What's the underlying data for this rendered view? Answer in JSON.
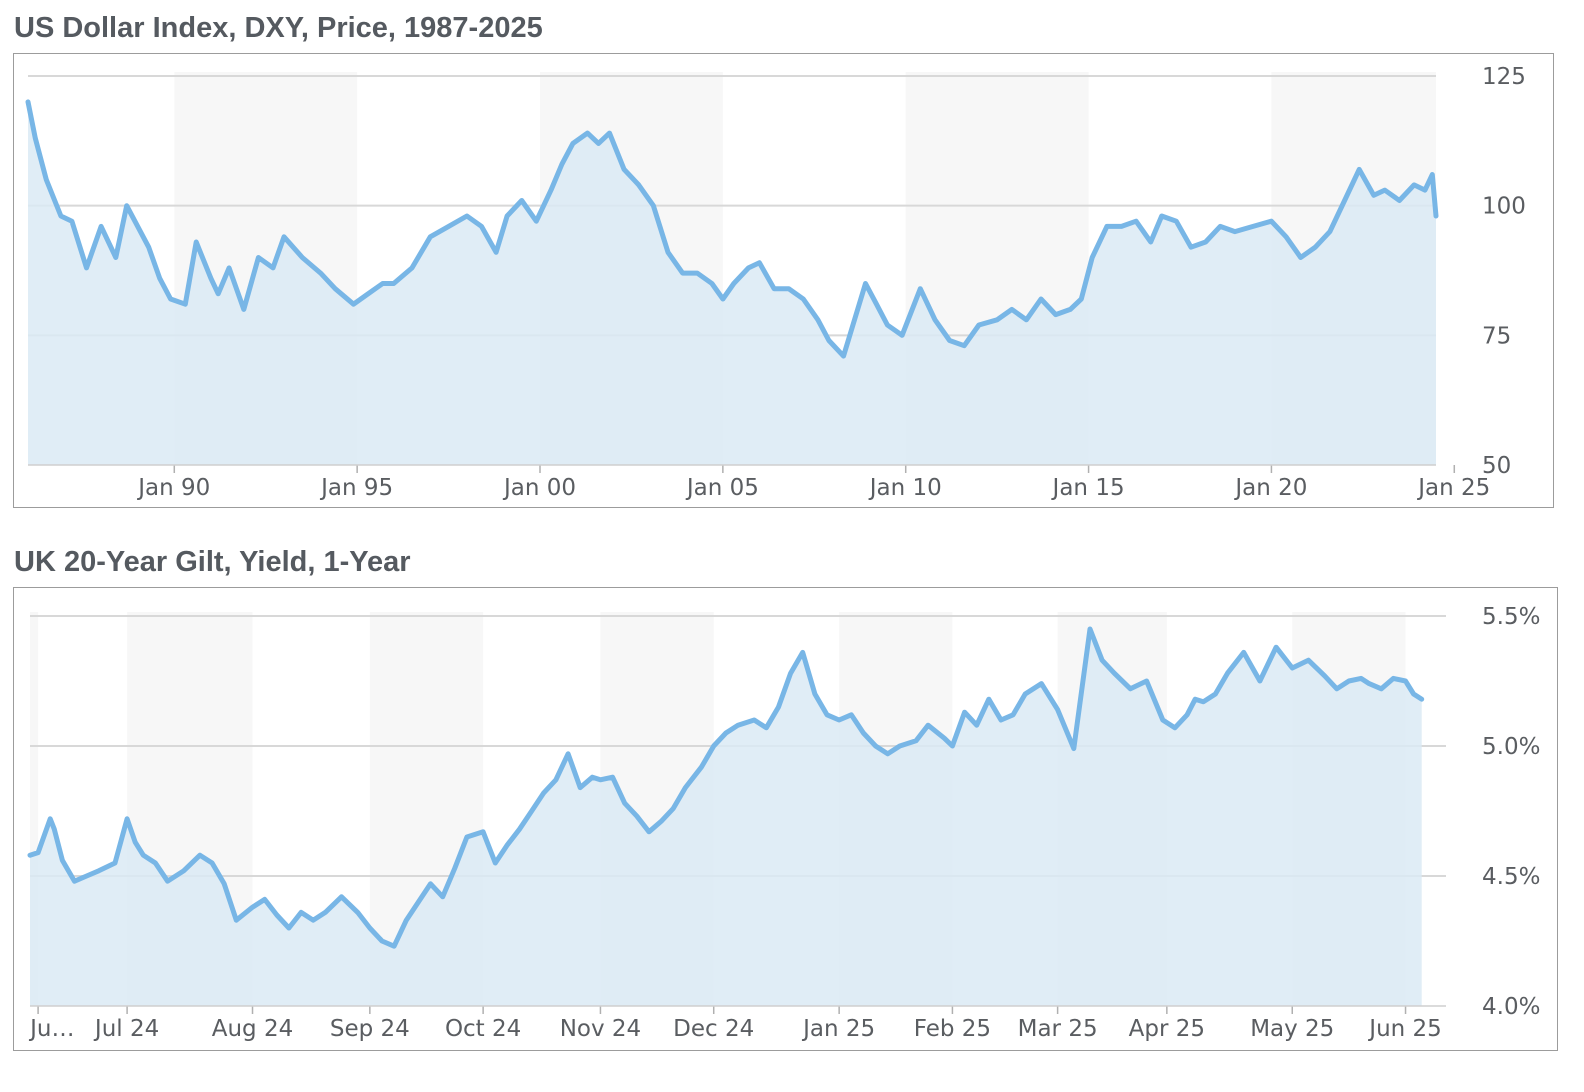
{
  "charts": [
    {
      "title": "US Dollar Index, DXY, Price, 1987-2025",
      "accent_color": "#78b6e6",
      "fill_color": "#dbeaf4",
      "band_color": "#f7f7f7"
    },
    {
      "title": "UK 20-Year Gilt, Yield, 1-Year",
      "accent_color": "#78b6e6",
      "fill_color": "#dbeaf4",
      "band_color": "#f7f7f7"
    }
  ],
  "chart_data": [
    {
      "type": "area",
      "title": "US Dollar Index, DXY, Price, 1987-2025",
      "xlabel": "",
      "ylabel": "",
      "x_range": [
        1986.0,
        2024.5
      ],
      "ylim": [
        50,
        125
      ],
      "y_ticks": [
        50,
        75,
        100,
        125
      ],
      "y_tick_labels": [
        "50",
        "75",
        "100",
        "125"
      ],
      "x_ticks": [
        1990,
        1995,
        2000,
        2005,
        2010,
        2015,
        2020,
        2025
      ],
      "x_tick_labels": [
        "Jan 90",
        "Jan 95",
        "Jan 00",
        "Jan 05",
        "Jan 10",
        "Jan 15",
        "Jan 20",
        "Jan 25"
      ],
      "grid": "horizontal",
      "legend": "none",
      "series": [
        {
          "x": [
            1986.0,
            1986.2,
            1986.5,
            1986.9,
            1987.2,
            1987.6,
            1988.0,
            1988.4,
            1988.7,
            1989.0,
            1989.3,
            1989.6,
            1989.9,
            1990.3,
            1990.6,
            1991.0,
            1991.2,
            1991.5,
            1991.9,
            1992.3,
            1992.7,
            1993.0,
            1993.5,
            1994.0,
            1994.4,
            1994.9,
            1995.3,
            1995.7,
            1996.0,
            1996.5,
            1997.0,
            1997.5,
            1998.0,
            1998.4,
            1998.8,
            1999.1,
            1999.5,
            1999.9,
            2000.3,
            2000.6,
            2000.9,
            2001.3,
            2001.6,
            2001.9,
            2002.3,
            2002.7,
            2003.1,
            2003.5,
            2003.9,
            2004.3,
            2004.7,
            2005.0,
            2005.3,
            2005.7,
            2006.0,
            2006.4,
            2006.8,
            2007.2,
            2007.6,
            2007.9,
            2008.3,
            2008.6,
            2008.9,
            2009.2,
            2009.5,
            2009.9,
            2010.4,
            2010.8,
            2011.2,
            2011.6,
            2012.0,
            2012.5,
            2012.9,
            2013.3,
            2013.7,
            2014.1,
            2014.5,
            2014.8,
            2015.1,
            2015.5,
            2015.9,
            2016.3,
            2016.7,
            2017.0,
            2017.4,
            2017.8,
            2018.2,
            2018.6,
            2019.0,
            2019.5,
            2020.0,
            2020.4,
            2020.8,
            2021.2,
            2021.6,
            2022.0,
            2022.4,
            2022.8,
            2023.1,
            2023.5,
            2023.9,
            2024.2,
            2024.4,
            2024.5
          ],
          "y": [
            120,
            113,
            105,
            98,
            97,
            88,
            96,
            90,
            100,
            96,
            92,
            86,
            82,
            81,
            93,
            86,
            83,
            88,
            80,
            90,
            88,
            94,
            90,
            87,
            84,
            81,
            83,
            85,
            85,
            88,
            94,
            96,
            98,
            96,
            91,
            98,
            101,
            97,
            103,
            108,
            112,
            114,
            112,
            114,
            107,
            104,
            100,
            91,
            87,
            87,
            85,
            82,
            85,
            88,
            89,
            84,
            84,
            82,
            78,
            74,
            71,
            78,
            85,
            81,
            77,
            75,
            84,
            78,
            74,
            73,
            77,
            78,
            80,
            78,
            82,
            79,
            80,
            82,
            90,
            96,
            96,
            97,
            93,
            98,
            97,
            92,
            93,
            96,
            95,
            96,
            97,
            94,
            90,
            92,
            95,
            101,
            107,
            102,
            103,
            101,
            104,
            103,
            106,
            98
          ]
        }
      ]
    },
    {
      "type": "area",
      "title": "UK 20-Year Gilt, Yield, 1-Year",
      "xlabel": "",
      "ylabel": "",
      "x_range": [
        0,
        350
      ],
      "ylim": [
        4.0,
        5.5
      ],
      "y_ticks": [
        4.0,
        4.5,
        5.0,
        5.5
      ],
      "y_tick_labels": [
        "4.0%",
        "4.5%",
        "5.0%",
        "5.5%"
      ],
      "x_ticks": [
        2,
        24,
        55,
        84,
        112,
        141,
        169,
        200,
        228,
        254,
        281,
        312,
        340
      ],
      "x_tick_labels": [
        "Ju…",
        "Jul 24",
        "Aug 24",
        "Sep 24",
        "Oct 24",
        "Nov 24",
        "Dec 24",
        "Jan 25",
        "Feb 25",
        "Mar 25",
        "Apr 25",
        "May 25",
        "Jun 25"
      ],
      "grid": "horizontal",
      "legend": "none",
      "series": [
        {
          "x": [
            0,
            2,
            5,
            6,
            8,
            11,
            14,
            17,
            21,
            24,
            26,
            28,
            31,
            34,
            38,
            42,
            45,
            48,
            51,
            55,
            58,
            61,
            64,
            67,
            70,
            73,
            77,
            81,
            84,
            87,
            90,
            93,
            96,
            99,
            102,
            105,
            108,
            112,
            115,
            118,
            121,
            124,
            127,
            130,
            133,
            136,
            139,
            141,
            144,
            147,
            150,
            153,
            156,
            159,
            162,
            166,
            169,
            172,
            175,
            179,
            182,
            185,
            188,
            191,
            194,
            197,
            200,
            203,
            206,
            209,
            212,
            215,
            219,
            222,
            226,
            228,
            231,
            234,
            237,
            240,
            243,
            246,
            250,
            254,
            258,
            262,
            265,
            268,
            272,
            276,
            280,
            283,
            286,
            288,
            290,
            293,
            296,
            300,
            304,
            308,
            312,
            316,
            320,
            323,
            326,
            329,
            331,
            334,
            337,
            340,
            342,
            344
          ],
          "y": [
            4.58,
            4.59,
            4.72,
            4.68,
            4.56,
            4.48,
            4.5,
            4.52,
            4.55,
            4.72,
            4.63,
            4.58,
            4.55,
            4.48,
            4.52,
            4.58,
            4.55,
            4.47,
            4.33,
            4.38,
            4.41,
            4.35,
            4.3,
            4.36,
            4.33,
            4.36,
            4.42,
            4.36,
            4.3,
            4.25,
            4.23,
            4.33,
            4.4,
            4.47,
            4.42,
            4.53,
            4.65,
            4.67,
            4.55,
            4.62,
            4.68,
            4.75,
            4.82,
            4.87,
            4.97,
            4.84,
            4.88,
            4.87,
            4.88,
            4.78,
            4.73,
            4.67,
            4.71,
            4.76,
            4.84,
            4.92,
            5.0,
            5.05,
            5.08,
            5.1,
            5.07,
            5.15,
            5.28,
            5.36,
            5.2,
            5.12,
            5.1,
            5.12,
            5.05,
            5.0,
            4.97,
            5.0,
            5.02,
            5.08,
            5.03,
            5.0,
            5.13,
            5.08,
            5.18,
            5.1,
            5.12,
            5.2,
            5.24,
            5.14,
            4.99,
            5.45,
            5.33,
            5.28,
            5.22,
            5.25,
            5.1,
            5.07,
            5.12,
            5.18,
            5.17,
            5.2,
            5.28,
            5.36,
            5.25,
            5.38,
            5.3,
            5.33,
            5.27,
            5.22,
            5.25,
            5.26,
            5.24,
            5.22,
            5.26,
            5.25,
            5.2,
            5.18
          ]
        }
      ]
    }
  ]
}
